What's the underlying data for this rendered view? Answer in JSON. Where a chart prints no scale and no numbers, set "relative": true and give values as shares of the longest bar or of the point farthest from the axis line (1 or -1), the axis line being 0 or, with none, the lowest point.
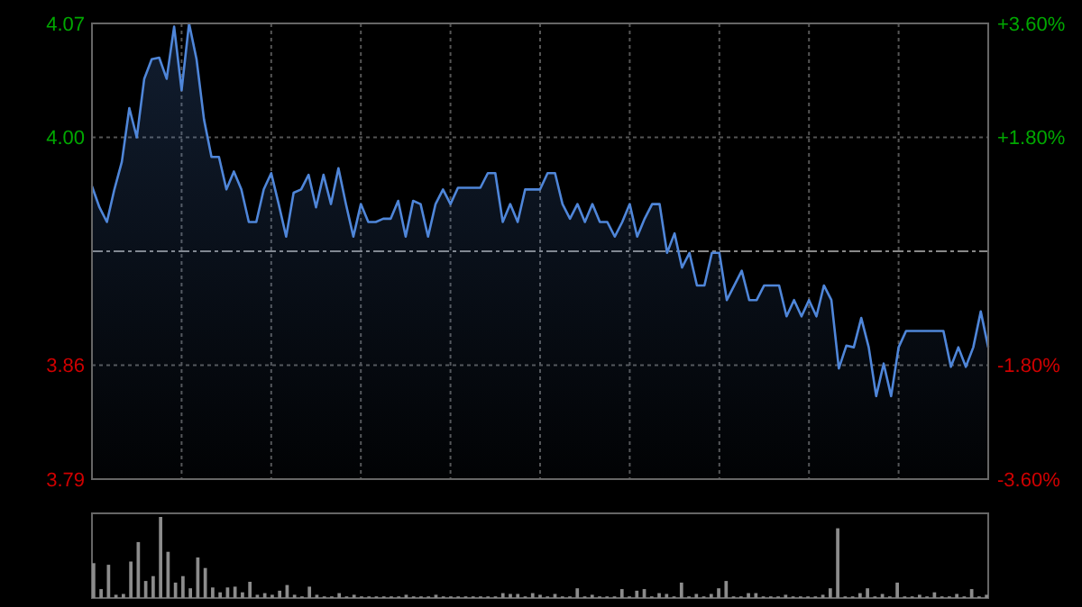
{
  "chart_data": [
    {
      "type": "area",
      "categories": [
        null,
        null,
        null,
        null,
        null,
        null,
        null,
        null,
        null,
        null,
        null,
        null,
        null,
        null,
        null,
        null,
        null,
        null,
        null,
        null,
        null,
        null,
        null,
        null,
        null,
        null,
        null,
        null,
        null,
        null,
        null,
        null,
        null,
        null,
        null,
        null,
        null,
        null,
        null,
        null,
        null,
        null,
        null,
        null,
        null,
        null,
        null,
        null,
        null,
        null,
        null,
        null,
        null,
        null,
        null,
        null,
        null,
        null,
        null,
        null,
        null,
        null,
        null,
        null,
        null,
        null,
        null,
        null,
        null,
        null,
        null,
        null,
        null,
        null,
        null,
        null,
        null,
        null,
        null,
        null,
        null,
        null,
        null,
        null,
        null,
        null,
        null,
        null,
        null,
        null,
        null,
        null,
        null,
        null,
        null,
        null,
        null,
        null,
        null,
        null,
        null,
        null,
        null,
        null,
        null,
        null,
        null,
        null,
        null,
        null,
        null,
        null,
        null,
        null,
        null,
        null,
        null,
        null,
        null,
        null,
        null
      ],
      "ylim": [
        3.79,
        4.07
      ],
      "yticks": [
        3.79,
        3.86,
        {
          "value": 4,
          "label": "4.00"
        },
        4.07
      ],
      "y2lim": [
        -3.6,
        3.6
      ],
      "y2ticks": [
        {
          "value": -3.6,
          "label": "-3.60%"
        },
        {
          "value": -1.8,
          "label": "-1.80%"
        },
        {
          "value": 1.8,
          "label": "+1.80%"
        },
        {
          "value": 3.6,
          "label": "+3.60%"
        }
      ],
      "grid": true,
      "ref_lines": [
        {
          "axis": "y",
          "value": 3.93
        }
      ],
      "series": [
        {
          "color": "#4f86d9",
          "values": [
            3.97,
            3.957,
            3.948,
            3.968,
            3.985,
            4.018,
            4.0,
            4.036,
            4.048,
            4.049,
            4.036,
            4.068,
            4.029,
            4.07,
            4.048,
            4.011,
            3.988,
            3.988,
            3.968,
            3.979,
            3.968,
            3.948,
            3.948,
            3.968,
            3.978,
            3.959,
            3.939,
            3.966,
            3.968,
            3.977,
            3.957,
            3.977,
            3.959,
            3.981,
            3.959,
            3.939,
            3.959,
            3.948,
            3.948,
            3.95,
            3.95,
            3.961,
            3.939,
            3.961,
            3.959,
            3.939,
            3.959,
            3.968,
            3.959,
            3.969,
            3.969,
            3.969,
            3.969,
            3.978,
            3.978,
            3.948,
            3.959,
            3.948,
            3.968,
            3.968,
            3.968,
            3.978,
            3.978,
            3.959,
            3.95,
            3.959,
            3.948,
            3.959,
            3.948,
            3.948,
            3.939,
            3.948,
            3.959,
            3.939,
            3.95,
            3.959,
            3.959,
            3.929,
            3.941,
            3.92,
            3.929,
            3.909,
            3.909,
            3.929,
            3.929,
            3.9,
            3.909,
            3.918,
            3.9,
            3.9,
            3.909,
            3.909,
            3.909,
            3.89,
            3.9,
            3.89,
            3.9,
            3.89,
            3.909,
            3.9,
            3.858,
            3.872,
            3.871,
            3.889,
            3.871,
            3.841,
            3.861,
            3.841,
            3.871,
            3.881,
            3.881,
            3.881,
            3.881,
            3.881,
            3.881,
            3.859,
            3.871,
            3.859,
            3.871,
            3.893,
            3.871
          ]
        }
      ]
    },
    {
      "type": "bar",
      "relative": true,
      "color": "#8c8c8c",
      "categories": [
        null,
        null,
        null,
        null,
        null,
        null,
        null,
        null,
        null,
        null,
        null,
        null,
        null,
        null,
        null,
        null,
        null,
        null,
        null,
        null,
        null,
        null,
        null,
        null,
        null,
        null,
        null,
        null,
        null,
        null,
        null,
        null,
        null,
        null,
        null,
        null,
        null,
        null,
        null,
        null,
        null,
        null,
        null,
        null,
        null,
        null,
        null,
        null,
        null,
        null,
        null,
        null,
        null,
        null,
        null,
        null,
        null,
        null,
        null,
        null,
        null,
        null,
        null,
        null,
        null,
        null,
        null,
        null,
        null,
        null,
        null,
        null,
        null,
        null,
        null,
        null,
        null,
        null,
        null,
        null,
        null,
        null,
        null,
        null,
        null,
        null,
        null,
        null,
        null,
        null,
        null,
        null,
        null,
        null,
        null,
        null,
        null,
        null,
        null,
        null,
        null,
        null,
        null,
        null,
        null,
        null,
        null,
        null,
        null,
        null,
        null,
        null,
        null,
        null,
        null,
        null,
        null,
        null,
        null,
        null,
        null
      ],
      "values": [
        0.43,
        0.11,
        0.41,
        0.04,
        0.05,
        0.45,
        0.69,
        0.21,
        0.27,
        1.0,
        0.57,
        0.19,
        0.27,
        0.12,
        0.5,
        0.37,
        0.13,
        0.07,
        0.13,
        0.14,
        0.07,
        0.2,
        0.04,
        0.06,
        0.04,
        0.09,
        0.16,
        0.04,
        0.02,
        0.14,
        0.04,
        0.02,
        0.02,
        0.06,
        0.02,
        0.04,
        0.02,
        0.02,
        0.02,
        0.02,
        0.02,
        0.02,
        0.04,
        0.02,
        0.02,
        0.02,
        0.04,
        0.02,
        0.02,
        0.02,
        0.02,
        0.02,
        0.02,
        0.02,
        0.02,
        0.06,
        0.05,
        0.05,
        0.02,
        0.06,
        0.04,
        0.02,
        0.05,
        0.02,
        0.02,
        0.12,
        0.02,
        0.04,
        0.02,
        0.02,
        0.02,
        0.11,
        0.02,
        0.09,
        0.11,
        0.02,
        0.06,
        0.05,
        0.02,
        0.19,
        0.02,
        0.05,
        0.02,
        0.05,
        0.12,
        0.21,
        0.02,
        0.02,
        0.06,
        0.06,
        0.02,
        0.02,
        0.02,
        0.04,
        0.02,
        0.02,
        0.02,
        0.02,
        0.04,
        0.12,
        0.86,
        0.02,
        0.02,
        0.06,
        0.12,
        0.02,
        0.05,
        0.02,
        0.19,
        0.02,
        0.02,
        0.04,
        0.02,
        0.07,
        0.02,
        0.02,
        0.05,
        0.02,
        0.11,
        0.02,
        0.04
      ]
    }
  ]
}
